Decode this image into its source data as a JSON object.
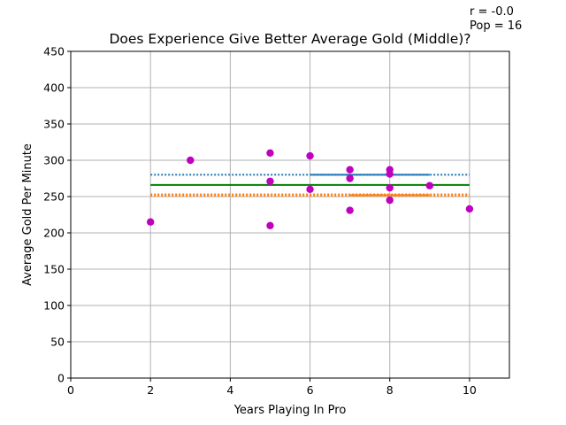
{
  "chart_data": {
    "type": "scatter",
    "title": "Does Experience Give Better Average Gold (Middle)?",
    "xlabel": "Years Playing In Pro",
    "ylabel": "Average Gold Per Minute",
    "xlim": [
      0,
      11
    ],
    "ylim": [
      0,
      450
    ],
    "xticks": [
      "0",
      "2",
      "4",
      "6",
      "8",
      "10"
    ],
    "yticks": [
      "0",
      "50",
      "100",
      "150",
      "200",
      "250",
      "300",
      "350",
      "400",
      "450"
    ],
    "grid": true,
    "annotations": [
      "r = -0.0",
      "Pop = 16"
    ],
    "points": [
      {
        "x": 2,
        "y": 215
      },
      {
        "x": 3,
        "y": 300
      },
      {
        "x": 5,
        "y": 310
      },
      {
        "x": 5,
        "y": 271
      },
      {
        "x": 5,
        "y": 210
      },
      {
        "x": 6,
        "y": 306
      },
      {
        "x": 6,
        "y": 260
      },
      {
        "x": 7,
        "y": 287
      },
      {
        "x": 7,
        "y": 275
      },
      {
        "x": 7,
        "y": 231
      },
      {
        "x": 8,
        "y": 287
      },
      {
        "x": 8,
        "y": 281
      },
      {
        "x": 8,
        "y": 262
      },
      {
        "x": 8,
        "y": 245
      },
      {
        "x": 9,
        "y": 265
      },
      {
        "x": 10,
        "y": 233
      }
    ],
    "lines": [
      {
        "x": [
          2,
          10
        ],
        "y": [
          280,
          280
        ],
        "style": "dotted",
        "color": "#1f77b4"
      },
      {
        "x": [
          6,
          9
        ],
        "y": [
          280,
          280
        ],
        "style": "solid",
        "color": "#1f77b4"
      },
      {
        "x": [
          2,
          10
        ],
        "y": [
          266,
          266
        ],
        "style": "solid",
        "color": "#008000"
      },
      {
        "x": [
          2,
          10
        ],
        "y": [
          251,
          251
        ],
        "style": "dotted",
        "color": "#ff7f0e"
      },
      {
        "x": [
          2,
          10
        ],
        "y": [
          253,
          253
        ],
        "style": "dotted",
        "color": "#ff7f0e"
      },
      {
        "x": [
          7,
          9
        ],
        "y": [
          252,
          252
        ],
        "style": "solid",
        "color": "#ff7f0e"
      }
    ],
    "point_color": "#bf00bf"
  }
}
